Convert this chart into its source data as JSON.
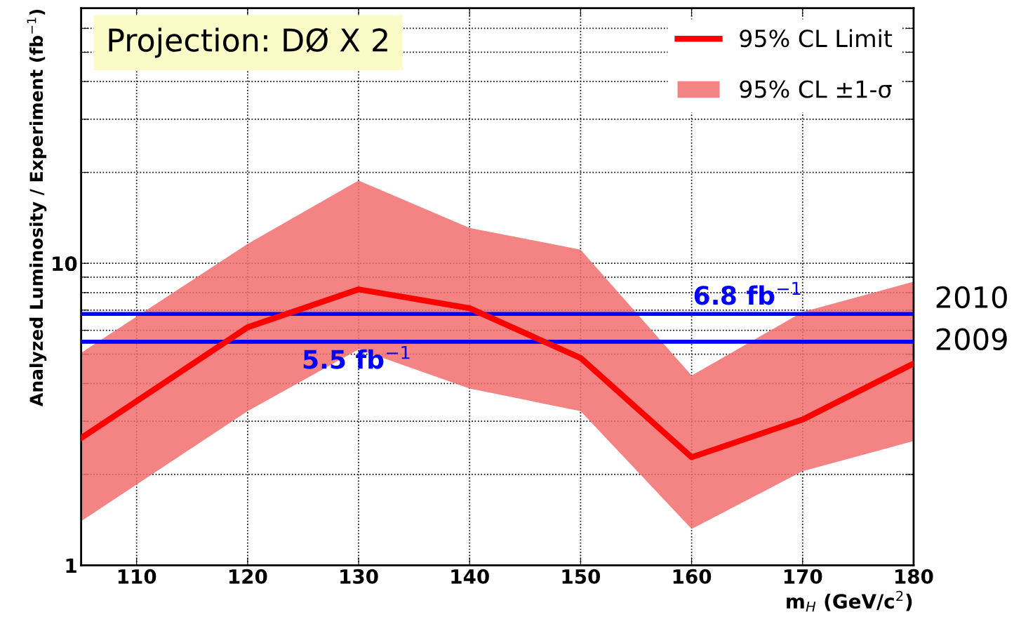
{
  "chart_data": {
    "type": "line",
    "xlabel": "m$_{H}$ (GeV/c$^{2}$)",
    "ylabel": "Analyzed Luminosity / Experiment (fb$^{−1}$)",
    "x": [
      105,
      120,
      130,
      140,
      150,
      160,
      170,
      180
    ],
    "series": [
      {
        "name": "95% CL ±1-σ",
        "type": "area",
        "color": "#f26d6d",
        "values": [
          null,
          null,
          null,
          null,
          null,
          null,
          null,
          null
        ],
        "lower": [
          1.4,
          3.24,
          5.19,
          3.85,
          3.24,
          1.32,
          2.05,
          2.58
        ],
        "upper": [
          5.05,
          11.6,
          18.8,
          13.1,
          11.1,
          4.25,
          6.9,
          8.7
        ]
      },
      {
        "name": "95% CL Limit",
        "color": "#ff0000",
        "values": [
          2.64,
          6.14,
          8.2,
          7.1,
          4.86,
          2.28,
          3.04,
          4.66
        ]
      }
    ],
    "log": "y",
    "xlim": [
      105,
      180
    ],
    "ylim": [
      1,
      70
    ],
    "xticks": [
      110,
      120,
      130,
      140,
      150,
      160,
      170,
      180
    ],
    "yticks": [
      1,
      {
        "value": 2,
        "label": null
      },
      {
        "value": 3,
        "label": null
      },
      {
        "value": 4,
        "label": null
      },
      {
        "value": 5,
        "label": null
      },
      {
        "value": 6,
        "label": null
      },
      {
        "value": 7,
        "label": null
      },
      {
        "value": 8,
        "label": null
      },
      {
        "value": 9,
        "label": null
      },
      10,
      {
        "value": 20,
        "label": null
      },
      {
        "value": 30,
        "label": null
      },
      {
        "value": 40,
        "label": null
      },
      {
        "value": 50,
        "label": null
      },
      {
        "value": 60,
        "label": null
      },
      {
        "value": 70,
        "label": null
      }
    ],
    "ref_lines": [
      {
        "axis": "y",
        "value": 6.8,
        "label": "6.8 fb$^{−1}$",
        "color": "#0000ff"
      },
      {
        "axis": "y",
        "value": 5.5,
        "label": "5.5 fb$^{−1}$",
        "color": "#0000ff"
      }
    ],
    "annotations": [
      "Projection: DØ X 2",
      "2010",
      "2009"
    ],
    "grid": true,
    "legend": "top right",
    "marker": "none",
    "line_style": "solid"
  }
}
